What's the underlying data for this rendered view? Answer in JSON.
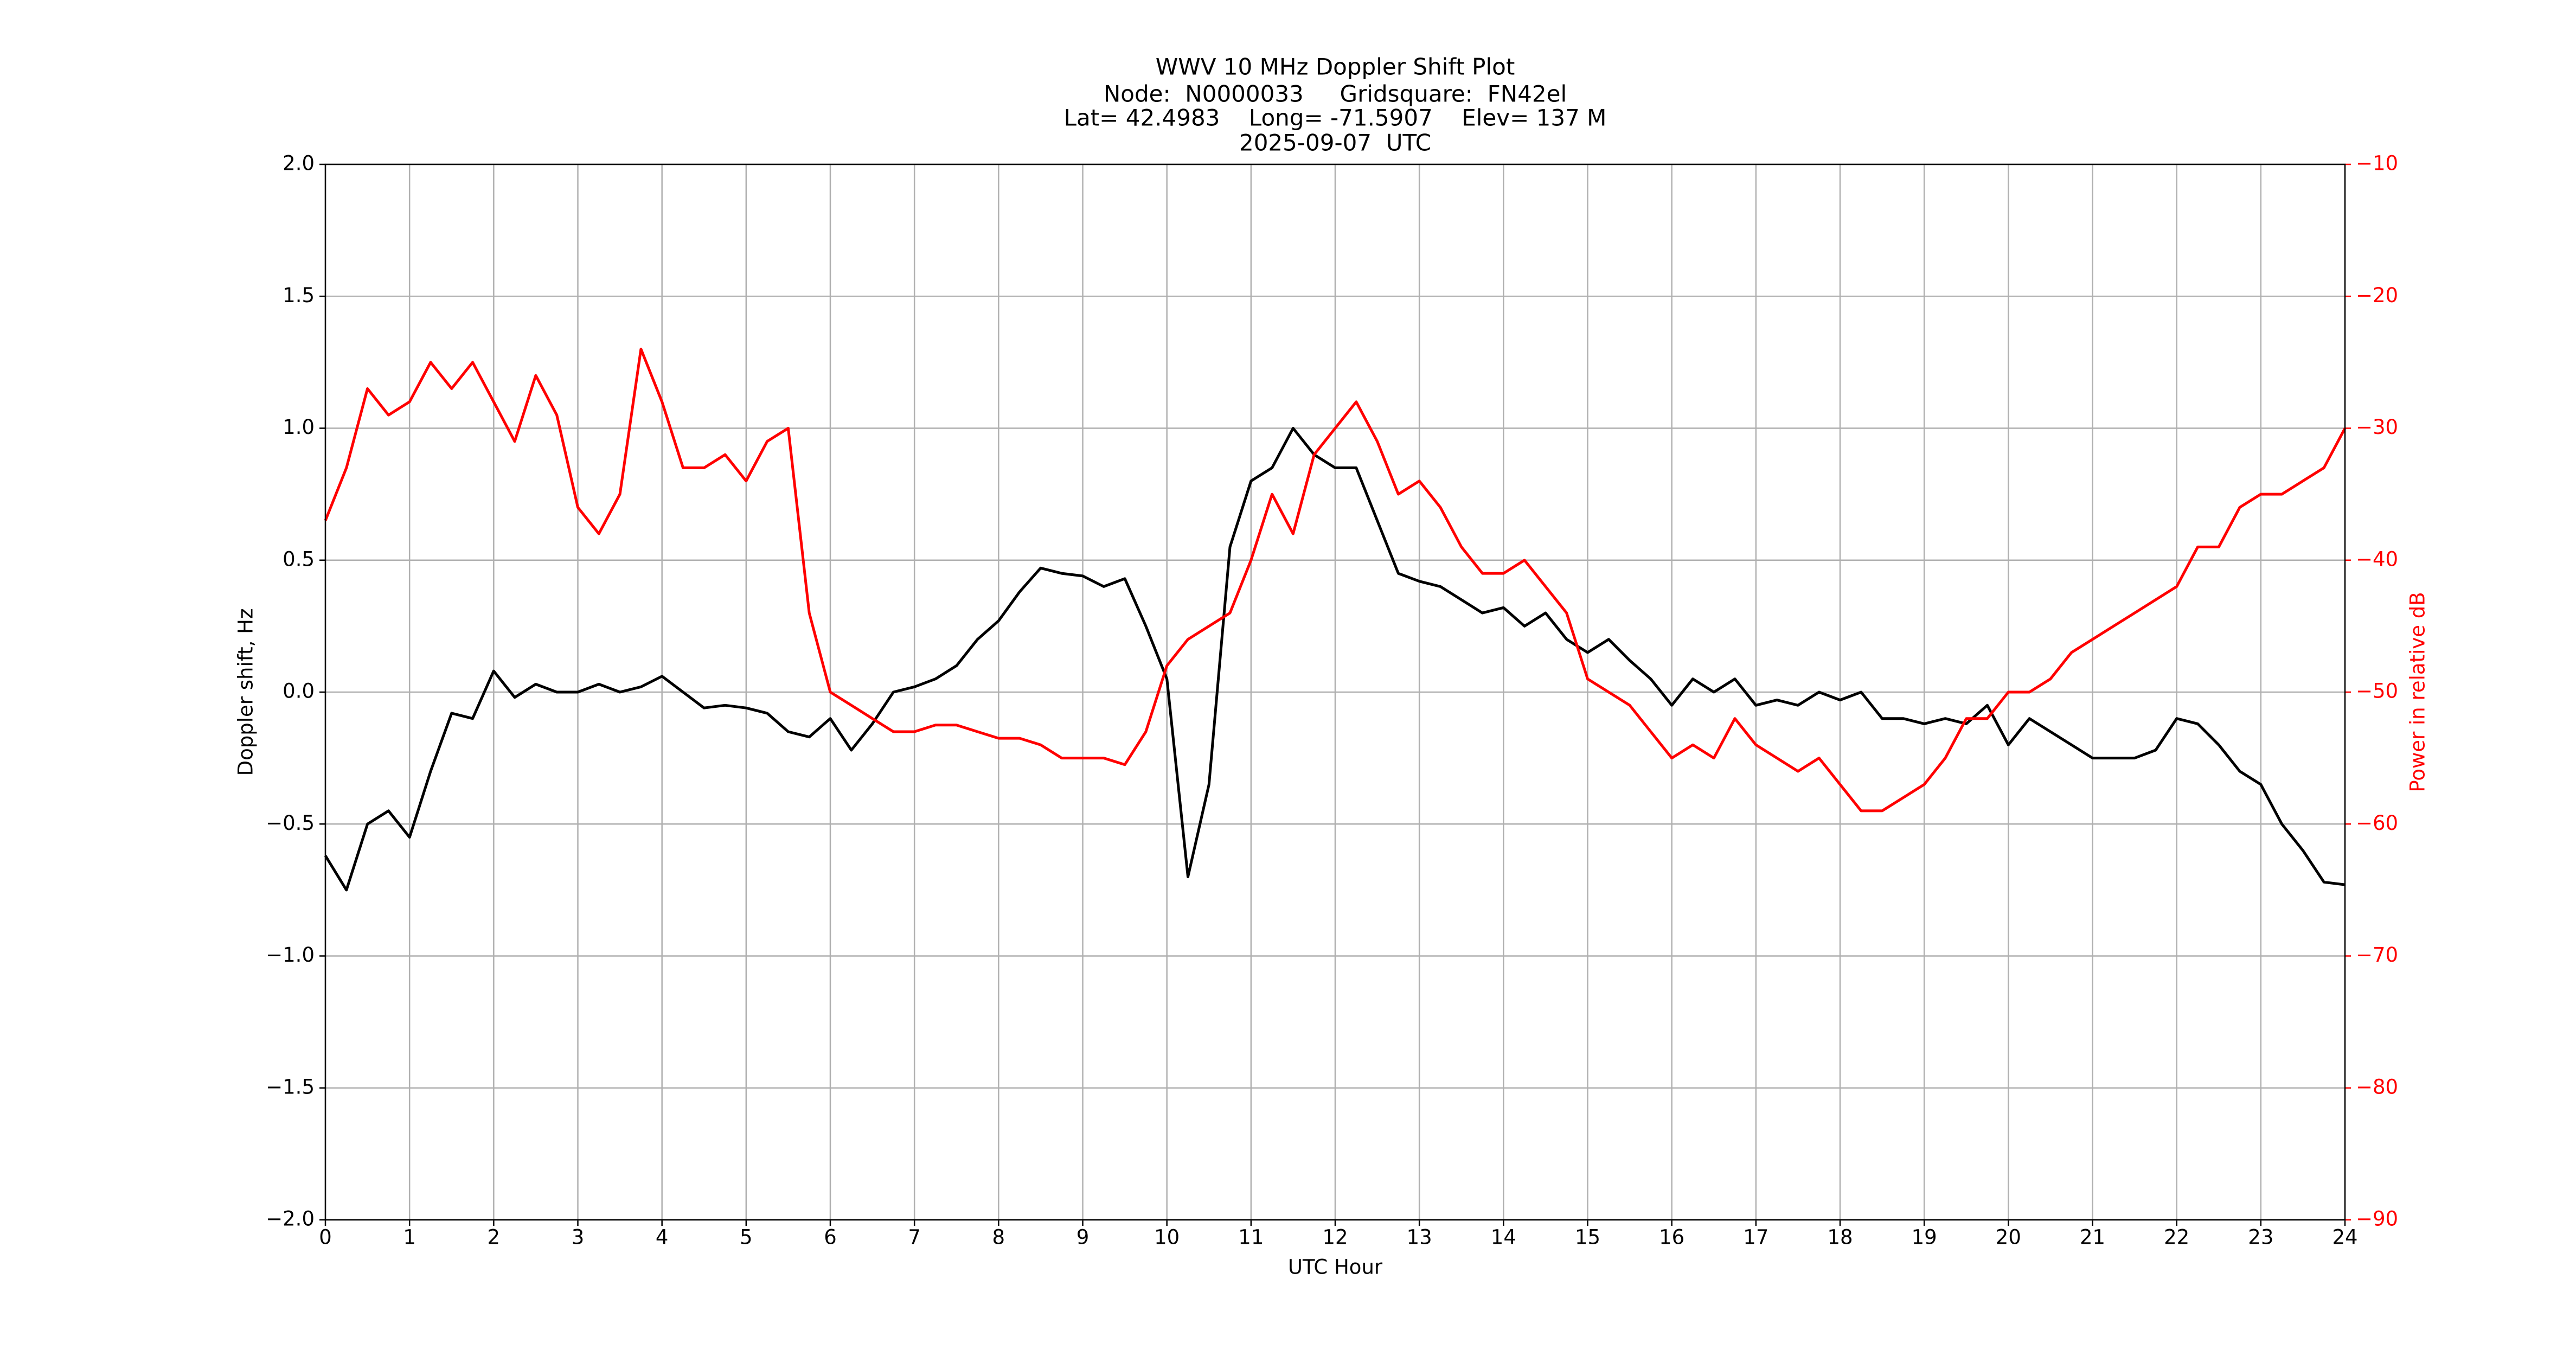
{
  "chart_data": {
    "type": "line",
    "title": [
      "WWV 10 MHz Doppler Shift Plot",
      "Node:  N0000033     Gridsquare:  FN42el",
      "Lat= 42.4983    Long= -71.5907    Elev= 137 M",
      "2025-09-07  UTC"
    ],
    "xlabel": "UTC Hour",
    "ylabel": "Doppler shift, Hz",
    "y2label": "Power in relative dB",
    "y2color": "#ff0000",
    "x": [
      0,
      0.25,
      0.5,
      0.75,
      1,
      1.25,
      1.5,
      1.75,
      2,
      2.25,
      2.5,
      2.75,
      3,
      3.25,
      3.5,
      3.75,
      4,
      4.25,
      4.5,
      4.75,
      5,
      5.25,
      5.5,
      5.75,
      6,
      6.25,
      6.5,
      6.75,
      7,
      7.25,
      7.5,
      7.75,
      8,
      8.25,
      8.5,
      8.75,
      9,
      9.25,
      9.5,
      9.75,
      10,
      10.25,
      10.5,
      10.75,
      11,
      11.25,
      11.5,
      11.75,
      12,
      12.25,
      12.5,
      12.75,
      13,
      13.25,
      13.5,
      13.75,
      14,
      14.25,
      14.5,
      14.75,
      15,
      15.25,
      15.5,
      15.75,
      16,
      16.25,
      16.5,
      16.75,
      17,
      17.25,
      17.5,
      17.75,
      18,
      18.25,
      18.5,
      18.75,
      19,
      19.25,
      19.5,
      19.75,
      20,
      20.25,
      20.5,
      20.75,
      21,
      21.25,
      21.5,
      21.75,
      22,
      22.25,
      22.5,
      22.75,
      23,
      23.25,
      23.5,
      23.75,
      24
    ],
    "series": [
      {
        "color": "#000000",
        "values": [
          -0.62,
          -0.75,
          -0.5,
          -0.45,
          -0.55,
          -0.3,
          -0.08,
          -0.1,
          0.08,
          -0.02,
          0.03,
          0.0,
          0.0,
          0.03,
          0.0,
          0.02,
          0.06,
          0.0,
          -0.06,
          -0.05,
          -0.06,
          -0.08,
          -0.15,
          -0.17,
          -0.1,
          -0.22,
          -0.12,
          0.0,
          0.02,
          0.05,
          0.1,
          0.2,
          0.27,
          0.38,
          0.47,
          0.45,
          0.44,
          0.4,
          0.43,
          0.25,
          0.05,
          -0.7,
          -0.35,
          0.55,
          0.8,
          0.85,
          1.0,
          0.9,
          0.85,
          0.85,
          0.65,
          0.45,
          0.42,
          0.4,
          0.35,
          0.3,
          0.32,
          0.25,
          0.3,
          0.2,
          0.15,
          0.2,
          0.12,
          0.05,
          -0.05,
          0.05,
          0.0,
          0.05,
          -0.05,
          -0.03,
          -0.05,
          0.0,
          -0.03,
          0.0,
          -0.1,
          -0.1,
          -0.12,
          -0.1,
          -0.12,
          -0.05,
          -0.2,
          -0.1,
          -0.15,
          -0.2,
          -0.25,
          -0.25,
          -0.25,
          -0.22,
          -0.1,
          -0.12,
          -0.2,
          -0.3,
          -0.35,
          -0.5,
          -0.6,
          -0.72,
          -0.73
        ]
      },
      {
        "color": "#ff0000",
        "axis": "y2",
        "values": [
          -37,
          -33,
          -27,
          -29,
          -28,
          -25,
          -27,
          -25,
          -28,
          -31,
          -26,
          -29,
          -36,
          -38,
          -35,
          -24,
          -28,
          -33,
          -33,
          -32,
          -34,
          -31,
          -30,
          -44,
          -50,
          -51,
          -52,
          -53,
          -53,
          -52.5,
          -52.5,
          -53,
          -53.5,
          -53.5,
          -54,
          -55,
          -55,
          -55,
          -55.5,
          -53,
          -48,
          -46,
          -45,
          -44,
          -40,
          -35,
          -38,
          -32,
          -30,
          -28,
          -31,
          -35,
          -34,
          -36,
          -39,
          -41,
          -41,
          -40,
          -42,
          -44,
          -49,
          -50,
          -51,
          -53,
          -55,
          -54,
          -55,
          -52,
          -54,
          -55,
          -56,
          -55,
          -57,
          -59,
          -59,
          -58,
          -57,
          -55,
          -52,
          -52,
          -50,
          -50,
          -49,
          -47,
          -46,
          -45,
          -44,
          -43,
          -42,
          -39,
          -39,
          -36,
          -35,
          -35,
          -34,
          -33,
          -30
        ]
      }
    ],
    "xlim": [
      0,
      24
    ],
    "xticks": [
      0,
      1,
      2,
      3,
      4,
      5,
      6,
      7,
      8,
      9,
      10,
      11,
      12,
      13,
      14,
      15,
      16,
      17,
      18,
      19,
      20,
      21,
      22,
      23,
      24
    ],
    "ylim": [
      -2,
      2
    ],
    "yticks": [
      {
        "value": -2,
        "label": "−2.0"
      },
      {
        "value": -1.5,
        "label": "−1.5"
      },
      {
        "value": -1,
        "label": "−1.0"
      },
      {
        "value": -0.5,
        "label": "−0.5"
      },
      {
        "value": 0,
        "label": "0.0"
      },
      {
        "value": 0.5,
        "label": "0.5"
      },
      {
        "value": 1,
        "label": "1.0"
      },
      {
        "value": 1.5,
        "label": "1.5"
      },
      {
        "value": 2,
        "label": "2.0"
      }
    ],
    "y2lim": [
      -90,
      -10
    ],
    "y2ticks": [
      {
        "value": -90,
        "label": "−90"
      },
      {
        "value": -80,
        "label": "−80"
      },
      {
        "value": -70,
        "label": "−70"
      },
      {
        "value": -60,
        "label": "−60"
      },
      {
        "value": -50,
        "label": "−50"
      },
      {
        "value": -40,
        "label": "−40"
      },
      {
        "value": -30,
        "label": "−30"
      },
      {
        "value": -20,
        "label": "−20"
      },
      {
        "value": -10,
        "label": "−10"
      }
    ],
    "grid": true
  }
}
